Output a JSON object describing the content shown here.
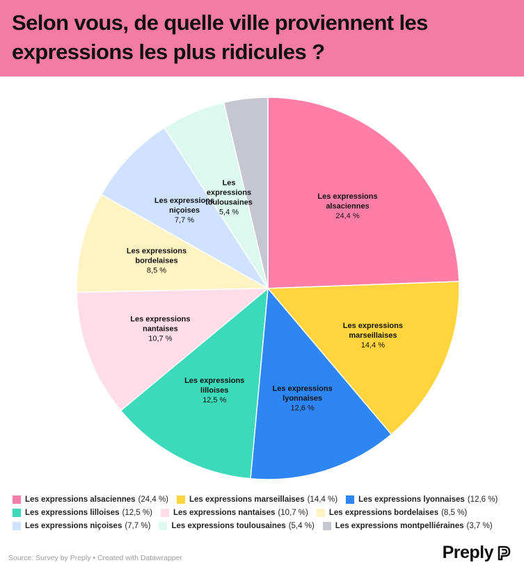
{
  "title": "Selon vous, de quelle ville proviennent les expressions les plus ridicules ?",
  "chart_data": {
    "type": "pie",
    "title": "Selon vous, de quelle ville proviennent les expressions les plus ridicules ?",
    "unit": "%",
    "slices": [
      {
        "name": "Les expressions alsaciennes",
        "label_lines": [
          "Les expressions",
          "alsaciennes"
        ],
        "value": 24.4,
        "value_label": "24,4 %",
        "color": "#ff7ea8"
      },
      {
        "name": "Les expressions marseillaises",
        "label_lines": [
          "Les expressions",
          "marseillaises"
        ],
        "value": 14.4,
        "value_label": "14,4 %",
        "color": "#ffd43d"
      },
      {
        "name": "Les expressions lyonnaises",
        "label_lines": [
          "Les expressions",
          "lyonnaises"
        ],
        "value": 12.6,
        "value_label": "12,6 %",
        "color": "#2e86f5"
      },
      {
        "name": "Les expressions lilloises",
        "label_lines": [
          "Les expressions",
          "lilloises"
        ],
        "value": 12.5,
        "value_label": "12,5 %",
        "color": "#3dd9bb"
      },
      {
        "name": "Les expressions nantaises",
        "label_lines": [
          "Les expressions",
          "nantaises"
        ],
        "value": 10.7,
        "value_label": "10,7 %",
        "color": "#ffdde8"
      },
      {
        "name": "Les expressions bordelaises",
        "label_lines": [
          "Les expressions",
          "bordelaises"
        ],
        "value": 8.5,
        "value_label": "8,5 %",
        "color": "#fff3c4"
      },
      {
        "name": "Les expressions niçoises",
        "label_lines": [
          "Les expressions",
          "niçoises"
        ],
        "value": 7.7,
        "value_label": "7,7 %",
        "color": "#cfe2ff"
      },
      {
        "name": "Les expressions toulousaines",
        "label_lines": [
          "Les",
          "expressions",
          "toulousaines"
        ],
        "value": 5.4,
        "value_label": "5,4 %",
        "color": "#dcf8ef"
      },
      {
        "name": "Les expressions montpelliéraines",
        "label_lines": [],
        "value": 3.7,
        "value_label": "3,7 %",
        "color": "#c6c6d0"
      }
    ]
  },
  "legend": {
    "rows": [
      [
        {
          "name": "Les expressions alsaciennes",
          "value": "(24,4 %)",
          "color": "#ff7ea8"
        },
        {
          "name": "Les expressions marseillaises",
          "value": "(14,4 %)",
          "color": "#ffd43d"
        },
        {
          "name": "Les expressions lyonnaises",
          "value": "(12,6 %)",
          "color": "#2e86f5"
        }
      ],
      [
        {
          "name": "Les expressions lilloises",
          "value": "(12,5 %)",
          "color": "#3dd9bb"
        },
        {
          "name": "Les expressions nantaises",
          "value": "(10,7 %)",
          "color": "#ffdde8"
        },
        {
          "name": "Les expressions bordelaises",
          "value": "(8,5 %)",
          "color": "#fff3c4"
        }
      ],
      [
        {
          "name": "Les expressions niçoises",
          "value": "(7,7 %)",
          "color": "#cfe2ff"
        },
        {
          "name": "Les expressions toulousaines",
          "value": "(5,4 %)",
          "color": "#dcf8ef"
        },
        {
          "name": "Les expressions montpelliéraines",
          "value": "(3,7 %)",
          "color": "#c6c6d0"
        }
      ]
    ]
  },
  "footer": {
    "source": "Source: Survey by Preply • Created with Datawrapper"
  },
  "brand": {
    "name": "Preply",
    "icon": "preply-logo-icon"
  }
}
